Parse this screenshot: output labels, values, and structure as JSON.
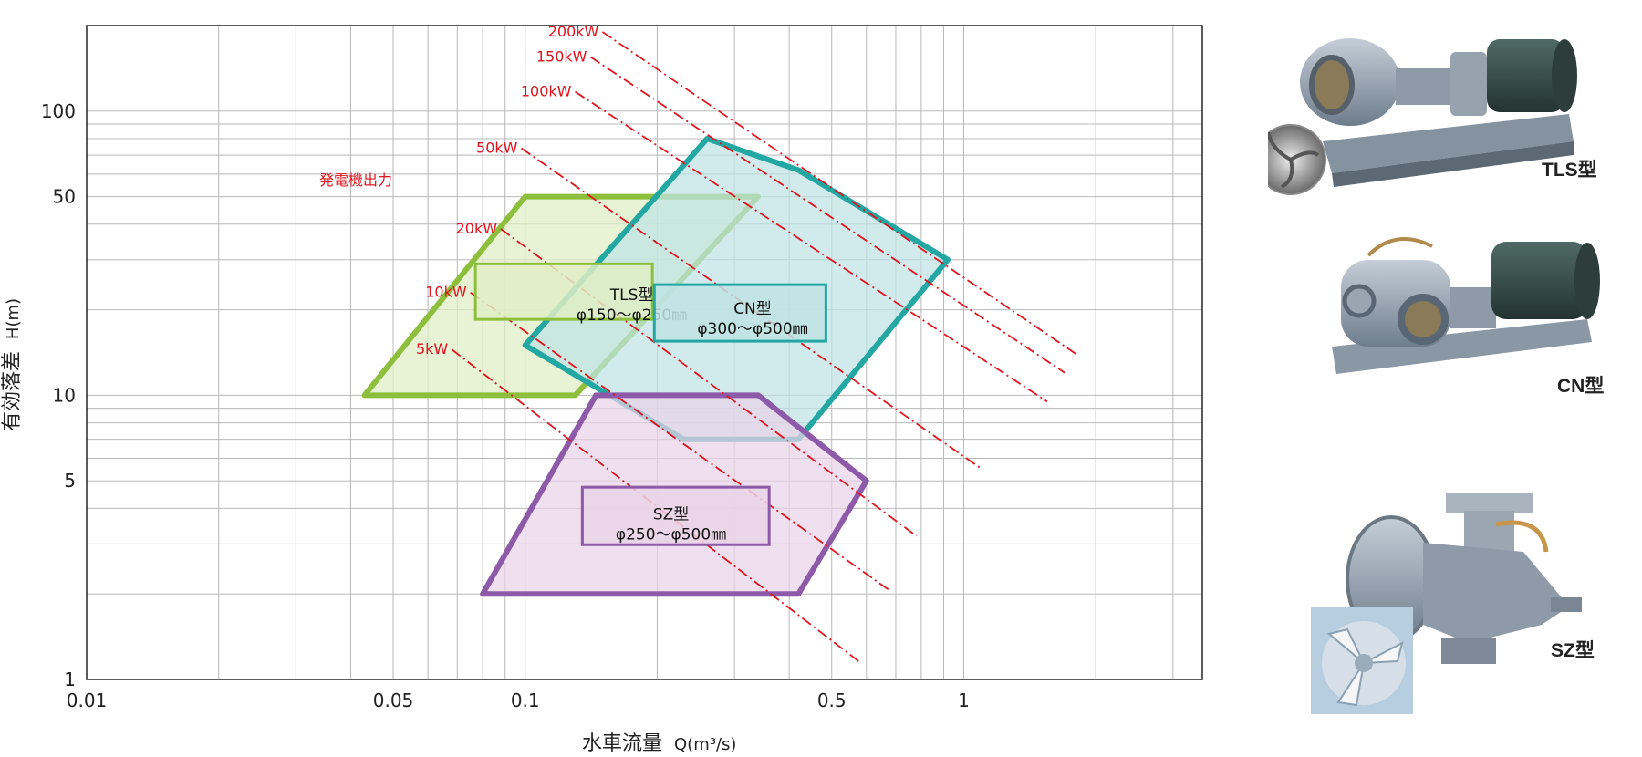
{
  "chart_data": {
    "type": "area",
    "xlabel": "水車流量",
    "xlabel_unit": "Q(m³/s)",
    "ylabel": "有効落差",
    "ylabel_unit": "H(m)",
    "x_scale": "log",
    "y_scale": "log",
    "xlim": [
      0.01,
      3.5
    ],
    "ylim": [
      1,
      200
    ],
    "grid": true,
    "x_ticks": [
      {
        "v": 0.01,
        "t": "0.01"
      },
      {
        "v": 0.05,
        "t": "0.05"
      },
      {
        "v": 0.1,
        "t": "0.1"
      },
      {
        "v": 0.5,
        "t": "0.5"
      },
      {
        "v": 1,
        "t": "1"
      }
    ],
    "y_ticks": [
      {
        "v": 1,
        "t": "1"
      },
      {
        "v": 5,
        "t": "5"
      },
      {
        "v": 10,
        "t": "10"
      },
      {
        "v": 50,
        "t": "50"
      },
      {
        "v": 100,
        "t": "100"
      }
    ],
    "power_header": "発電機出力",
    "power_lines": [
      {
        "label": "5kW",
        "x": [
          0.068,
          0.58
        ],
        "y": [
          14.5,
          1.15
        ]
      },
      {
        "label": "10kW",
        "x": [
          0.075,
          0.68
        ],
        "y": [
          23,
          2.05
        ]
      },
      {
        "label": "20kW",
        "x": [
          0.088,
          0.78
        ],
        "y": [
          38.5,
          3.2
        ]
      },
      {
        "label": "50kW",
        "x": [
          0.098,
          1.1
        ],
        "y": [
          74,
          5.5
        ]
      },
      {
        "label": "100kW",
        "x": [
          0.13,
          1.55
        ],
        "y": [
          117,
          9.5
        ]
      },
      {
        "label": "150kW",
        "x": [
          0.141,
          1.7
        ],
        "y": [
          155,
          12
        ]
      },
      {
        "label": "200kW",
        "x": [
          0.15,
          1.8
        ],
        "y": [
          190,
          14
        ]
      }
    ],
    "series": [
      {
        "name": "TLS型",
        "desc": "φ150〜φ250㎜",
        "color": "#8dbf3c",
        "fill": "#dfedc4",
        "polygon": [
          [
            0.043,
            10
          ],
          [
            0.1,
            50
          ],
          [
            0.34,
            50
          ],
          [
            0.13,
            10
          ]
        ],
        "label_pos": [
          0.175,
          21
        ],
        "box": [
          [
            0.077,
            18.5
          ],
          [
            0.195,
            29
          ]
        ]
      },
      {
        "name": "CN型",
        "desc": "φ300〜φ500㎜",
        "color": "#23a7a2",
        "fill": "#bfe3e4",
        "polygon": [
          [
            0.1,
            15
          ],
          [
            0.26,
            80
          ],
          [
            0.42,
            62
          ],
          [
            0.92,
            30
          ],
          [
            0.42,
            7
          ],
          [
            0.23,
            7
          ]
        ],
        "label_pos": [
          0.33,
          18.8
        ],
        "box": [
          [
            0.197,
            15.5
          ],
          [
            0.485,
            24.5
          ]
        ]
      },
      {
        "name": "SZ型",
        "desc": "φ250〜φ500㎜",
        "color": "#8c5aa8",
        "fill": "#ead3e8",
        "polygon": [
          [
            0.08,
            2
          ],
          [
            0.145,
            10
          ],
          [
            0.34,
            10
          ],
          [
            0.6,
            5
          ],
          [
            0.42,
            2
          ]
        ],
        "label_pos": [
          0.215,
          3.55
        ],
        "box": [
          [
            0.135,
            2.98
          ],
          [
            0.36,
            4.75
          ]
        ]
      }
    ]
  },
  "products": [
    {
      "caption": "TLS型"
    },
    {
      "caption": "CN型"
    },
    {
      "caption": "SZ型"
    }
  ]
}
